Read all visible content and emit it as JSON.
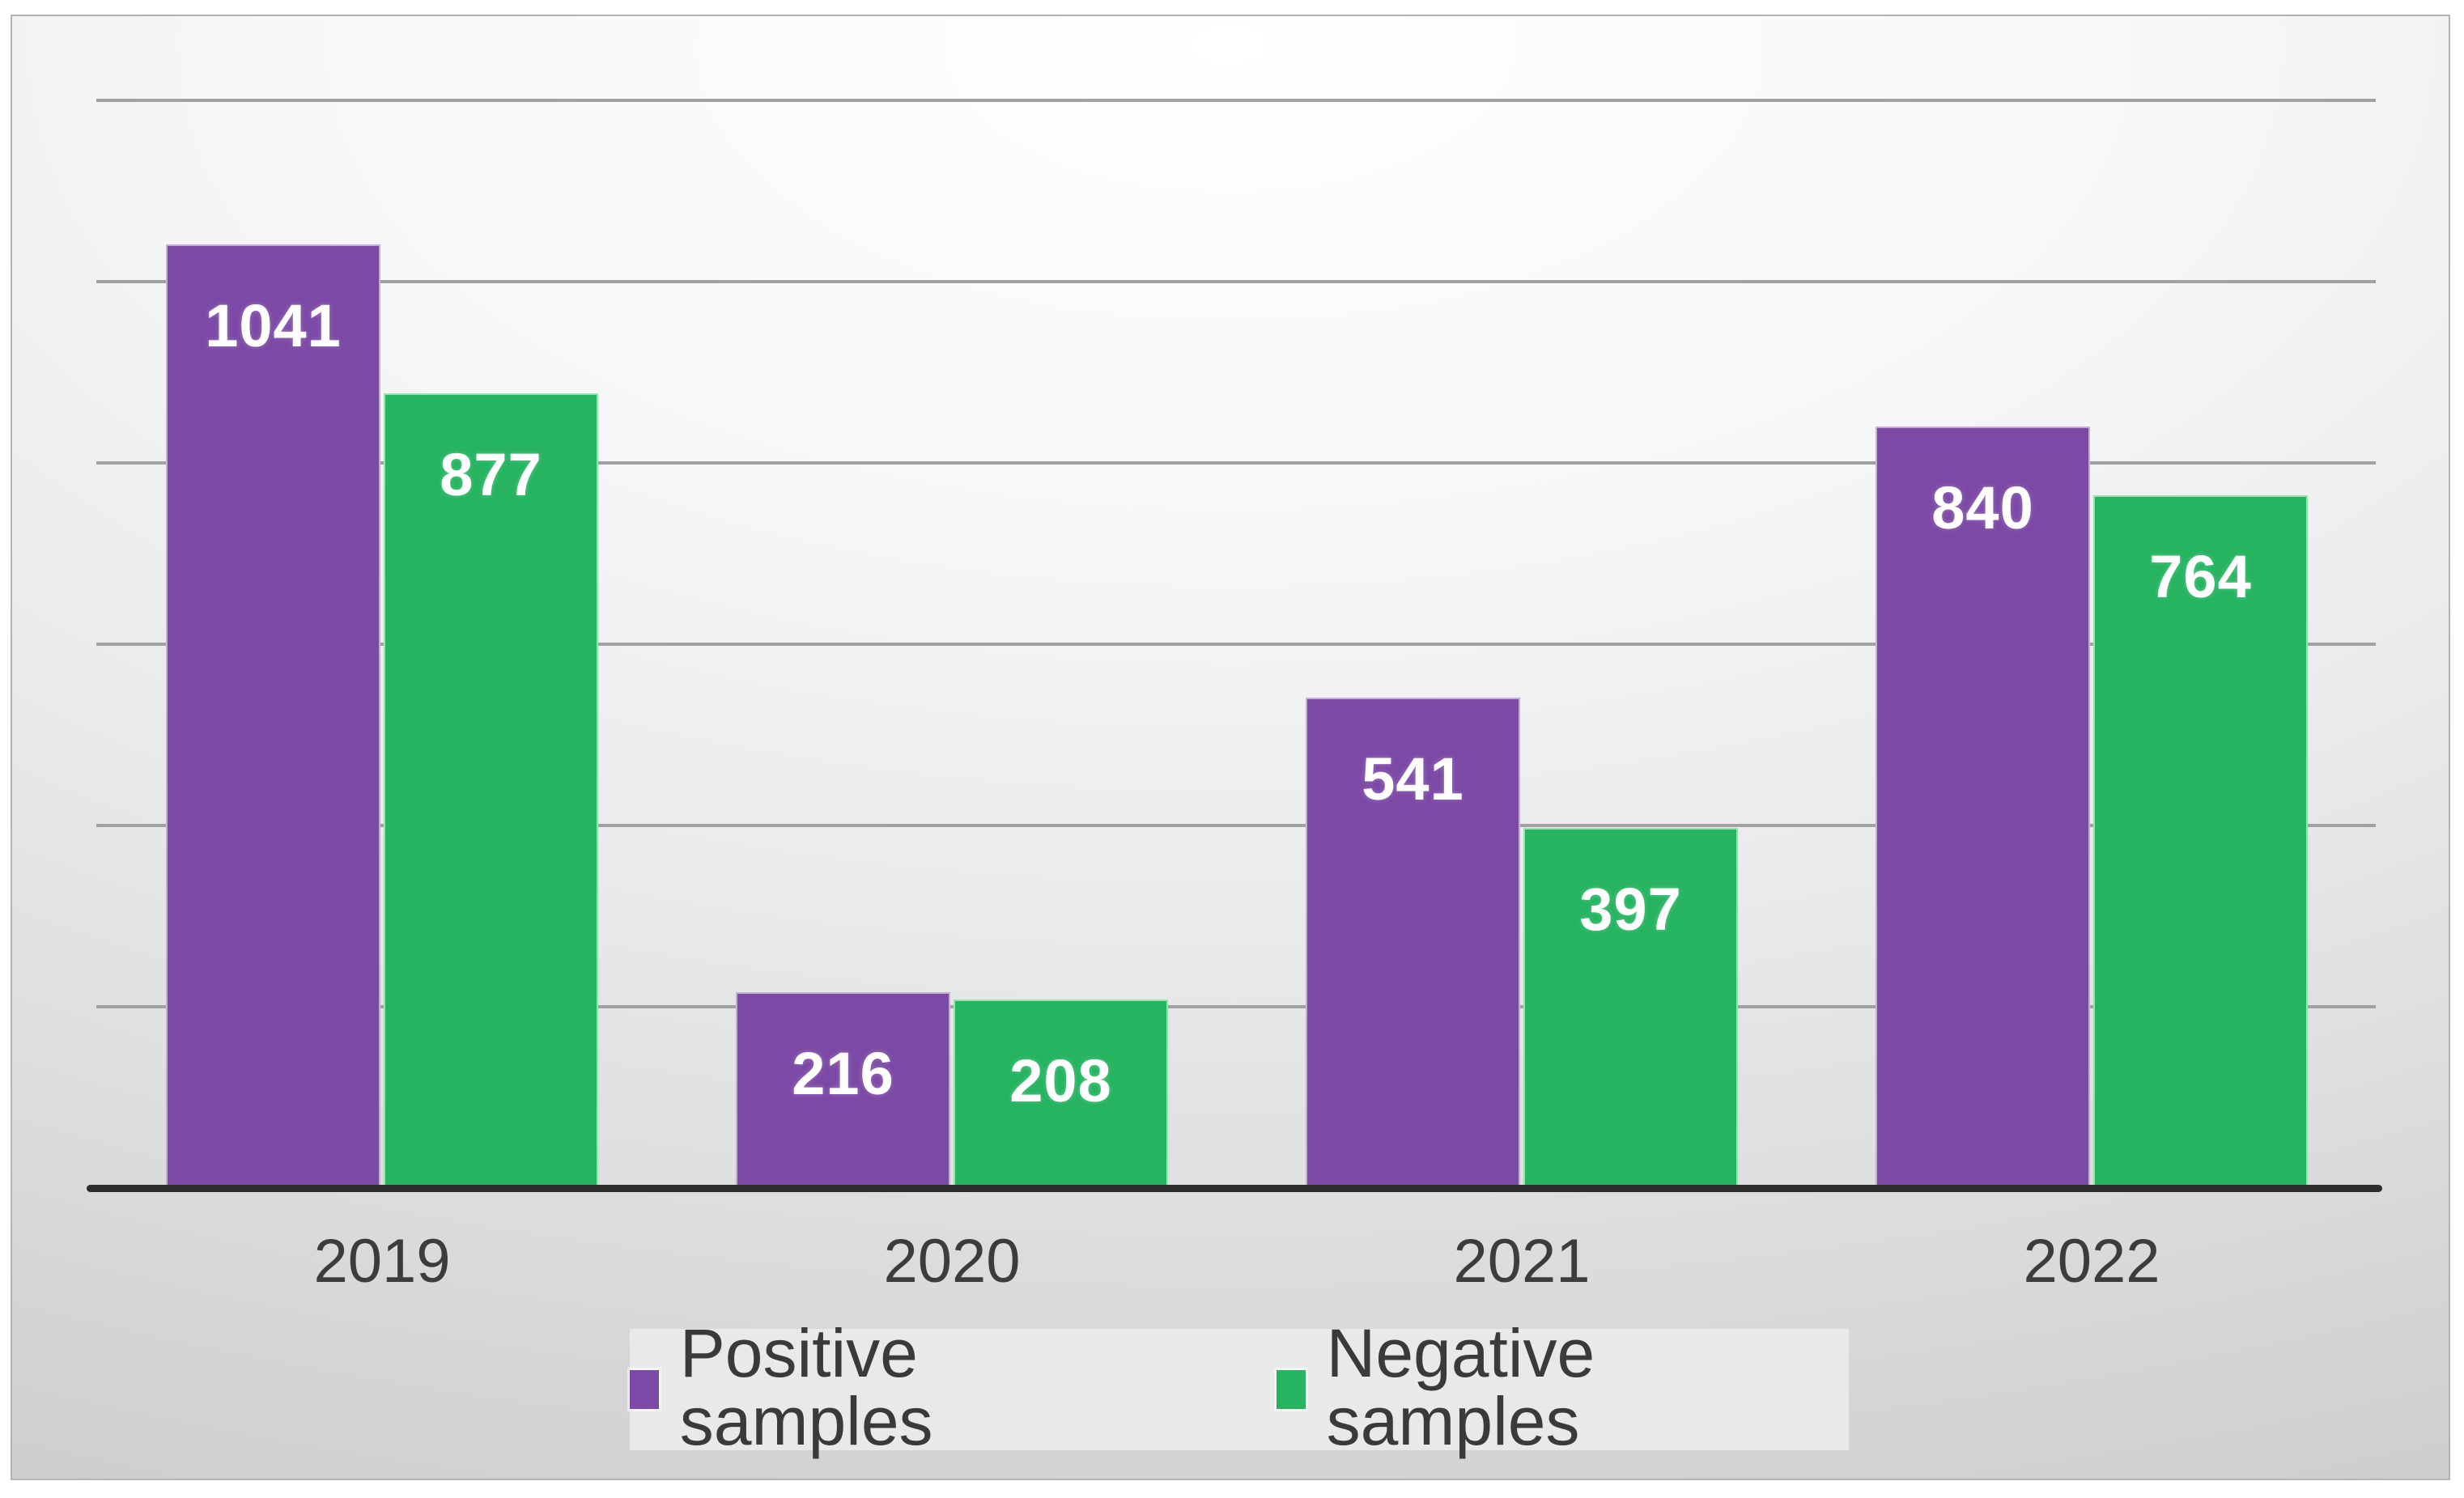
{
  "chart_data": {
    "type": "bar",
    "title": "",
    "xlabel": "",
    "ylabel": "",
    "categories": [
      "2019",
      "2020",
      "2021",
      "2022"
    ],
    "series": [
      {
        "name": "Positive samples",
        "color": "#7c4aa6",
        "values": [
          1041,
          216,
          541,
          840
        ]
      },
      {
        "name": "Negative samples",
        "color": "#26b461",
        "values": [
          877,
          208,
          397,
          764
        ]
      }
    ],
    "data_labels": [
      "1041",
      "216",
      "541",
      "840",
      "877",
      "208",
      "397",
      "764"
    ],
    "ylim": [
      0,
      1200
    ],
    "gridline_step": 200,
    "grid": true,
    "y_axis_labels_visible": false,
    "legend_position": "bottom",
    "colors": {
      "data_label_text": "#ffffff",
      "gridline": "#a1a1a1",
      "axis_line": "#2d2d2d",
      "x_tick_text": "#3c3c3c",
      "legend_text": "#3a3a3a",
      "legend_background": "#e9e9e9"
    }
  }
}
